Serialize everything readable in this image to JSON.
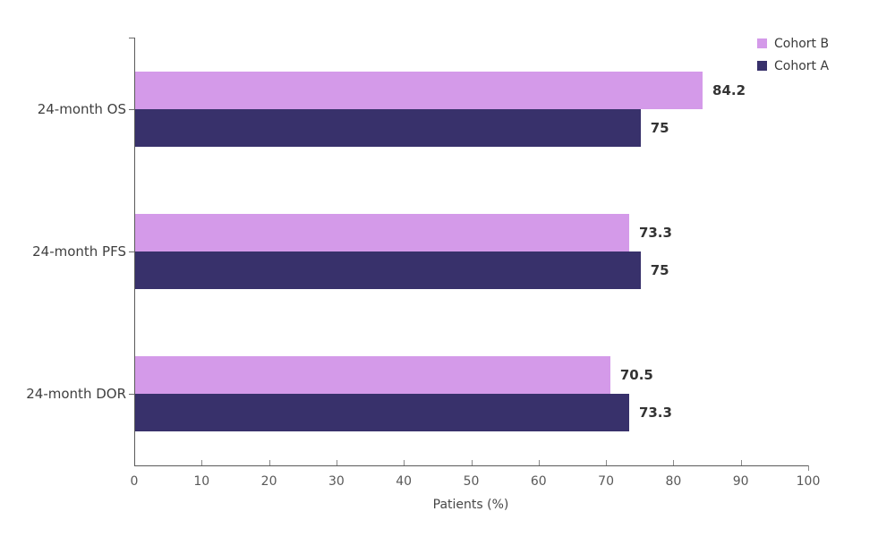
{
  "chart_data": {
    "type": "bar",
    "orientation": "horizontal",
    "title": "",
    "categories": [
      "24-month OS",
      "24-month PFS",
      "24-month DOR"
    ],
    "series": [
      {
        "name": "Cohort B",
        "color": "#d49ae9",
        "values": [
          84.2,
          73.3,
          70.5
        ],
        "value_labels": [
          "84.2",
          "73.3",
          "70.5"
        ]
      },
      {
        "name": "Cohort A",
        "color": "#38316b",
        "values": [
          75,
          75,
          73.3
        ],
        "value_labels": [
          "75",
          "75",
          "73.3"
        ]
      }
    ],
    "xlabel": "Patients (%)",
    "xlim": [
      0,
      100
    ],
    "xticks": [
      0,
      10,
      20,
      30,
      40,
      50,
      60,
      70,
      80,
      90,
      100
    ],
    "grid": false,
    "legend_position": "top-right"
  },
  "style": {
    "background": "#ffffff",
    "axis_color": "#5a5a5a",
    "tick_color": "#8a8a8a",
    "tick_label_color": "#595959",
    "axis_title_color": "#474747",
    "category_label_color": "#3f3f3f",
    "value_label_color": "#333333",
    "legend_text_color": "#3a3a3a"
  }
}
